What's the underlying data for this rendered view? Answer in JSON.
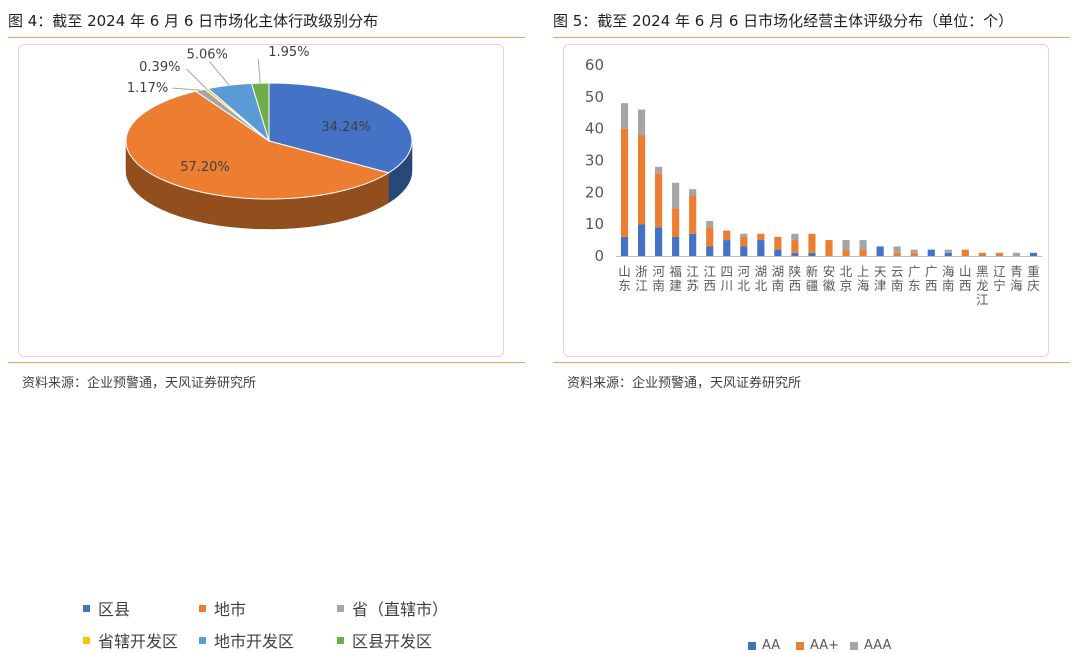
{
  "left": {
    "title": "图 4：截至 2024 年 6 月 6 日市场化主体行政级别分布",
    "source": "资料来源：企业预警通，天风证券研究所",
    "chart_data": {
      "type": "pie",
      "categories": [
        "区县",
        "地市",
        "省（直辖市）",
        "省辖开发区",
        "地市开发区",
        "区县开发区"
      ],
      "values": [
        34.24,
        57.2,
        1.17,
        0.39,
        5.06,
        1.95
      ],
      "labels": [
        "34.24%",
        "57.20%",
        "1.17%",
        "0.39%",
        "5.06%",
        "1.95%"
      ],
      "colors": [
        "#4472c4",
        "#ed7d31",
        "#a5a5a5",
        "#ffc000",
        "#5b9bd5",
        "#70ad47"
      ],
      "legend": "bottom"
    }
  },
  "right": {
    "title": "图 5：截至 2024 年 6 月 6 日市场化经营主体评级分布（单位：个）",
    "source": "资料来源：企业预警通，天风证券研究所",
    "chart_data": {
      "type": "bar",
      "stacked": true,
      "categories": [
        "山东",
        "浙江",
        "河南",
        "福建",
        "江苏",
        "江西",
        "四川",
        "河北",
        "湖北",
        "湖南",
        "陕西",
        "新疆",
        "安徽",
        "北京",
        "上海",
        "天津",
        "云南",
        "广东",
        "广西",
        "海南",
        "山西",
        "黑龙江",
        "辽宁",
        "青海",
        "重庆"
      ],
      "series": [
        {
          "name": "AA",
          "color": "#4472c4",
          "values": [
            6,
            10,
            9,
            6,
            7,
            3,
            5,
            3,
            5,
            2,
            1,
            1,
            0,
            0,
            0,
            3,
            0,
            0,
            2,
            1,
            0,
            0,
            0,
            0,
            1
          ]
        },
        {
          "name": "AA+",
          "color": "#ed7d31",
          "values": [
            34,
            28,
            17,
            9,
            12,
            6,
            3,
            3,
            2,
            4,
            4,
            6,
            5,
            2,
            2,
            0,
            1,
            1,
            0,
            0,
            2,
            1,
            1,
            0,
            0
          ]
        },
        {
          "name": "AAA",
          "color": "#a5a5a5",
          "values": [
            8,
            8,
            2,
            8,
            2,
            2,
            0,
            1,
            0,
            0,
            2,
            0,
            0,
            3,
            3,
            0,
            2,
            1,
            0,
            1,
            0,
            0,
            0,
            1,
            0
          ]
        }
      ],
      "yticks": [
        0,
        10,
        20,
        30,
        40,
        50,
        60
      ],
      "ylim": [
        0,
        60
      ],
      "grid": false,
      "legend": "bottom"
    }
  }
}
